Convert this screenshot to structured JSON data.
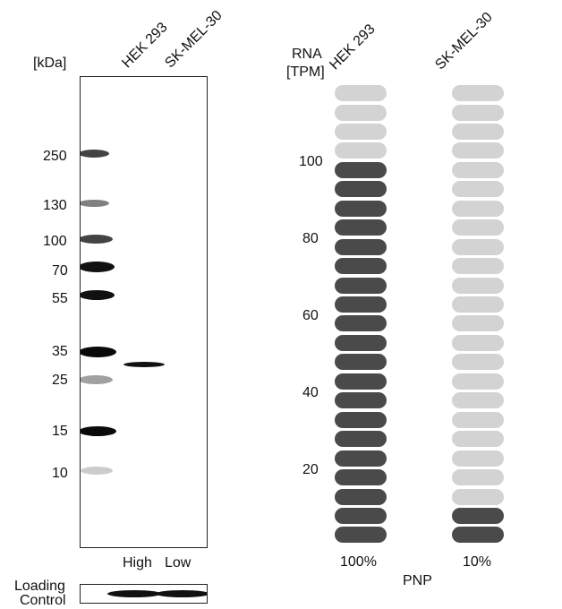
{
  "western_blot": {
    "unit_label": "[kDa]",
    "lanes": [
      "HEK 293",
      "SK-MEL-30"
    ],
    "markers": [
      "250",
      "130",
      "100",
      "70",
      "55",
      "35",
      "25",
      "15",
      "10"
    ],
    "expression_labels": [
      "High",
      "Low"
    ],
    "loading_control_label_line1": "Loading",
    "loading_control_label_line2": "Control"
  },
  "rna": {
    "axis_title_line1": "RNA",
    "axis_title_line2": "[TPM]",
    "lanes": [
      "HEK 293",
      "SK-MEL-30"
    ],
    "y_ticks": [
      "100",
      "80",
      "60",
      "40",
      "20"
    ],
    "percent_labels": [
      "100%",
      "10%"
    ],
    "gene": "PNP",
    "colors": {
      "filled": "#4a4a4a",
      "empty": "#d3d3d3"
    }
  },
  "chart_data": {
    "type": "bar",
    "categories": [
      "HEK 293",
      "SK-MEL-30"
    ],
    "values_percent": [
      100,
      10
    ],
    "blocks_total": 24,
    "blocks_filled": [
      20,
      2
    ],
    "ylabel": "RNA [TPM]",
    "xlabel": "PNP",
    "y_ticks": [
      20,
      40,
      60,
      80,
      100
    ]
  }
}
